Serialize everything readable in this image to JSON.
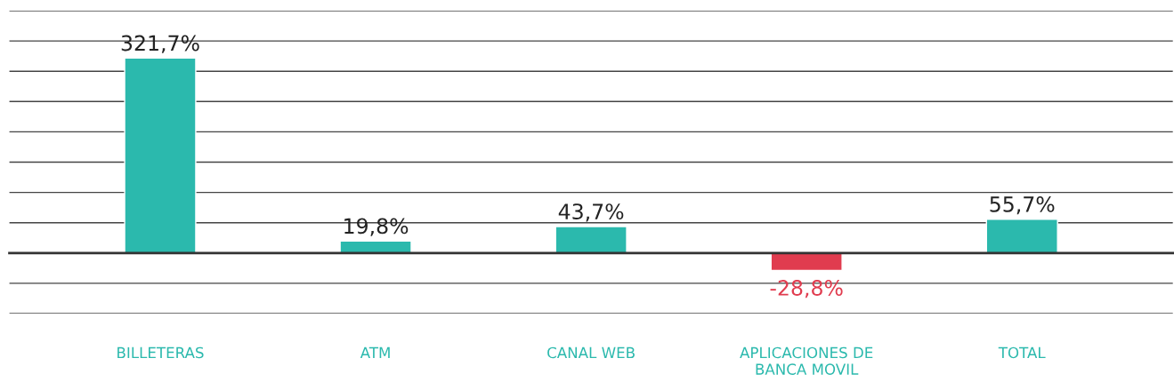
{
  "chart_data": {
    "type": "bar",
    "categories": [
      "BILLETERAS",
      "ATM",
      "CANAL WEB",
      "APLICACIONES DE\nBANCA MOVIL",
      "TOTAL"
    ],
    "values": [
      321.7,
      19.8,
      43.7,
      -28.8,
      55.7
    ],
    "colors": [
      "#2bb9ad",
      "#2bb9ad",
      "#2bb9ad",
      "#e03c4f",
      "#2bb9ad"
    ],
    "value_labels": [
      "321,7%",
      "19,8%",
      "43,7%",
      "-28,8%",
      "55,7%"
    ],
    "ylim": [
      -100,
      400
    ],
    "yticks": [
      {
        "value": -100,
        "label": null
      },
      {
        "value": -50,
        "label": null
      },
      {
        "value": 0,
        "label": null
      },
      {
        "value": 50,
        "label": null
      },
      {
        "value": 100,
        "label": null
      },
      {
        "value": 150,
        "label": null
      },
      {
        "value": 200,
        "label": null
      },
      {
        "value": 250,
        "label": null
      },
      {
        "value": 300,
        "label": null
      },
      {
        "value": 350,
        "label": null
      },
      {
        "value": 400,
        "label": null
      }
    ],
    "grid": "y",
    "legend": false
  }
}
